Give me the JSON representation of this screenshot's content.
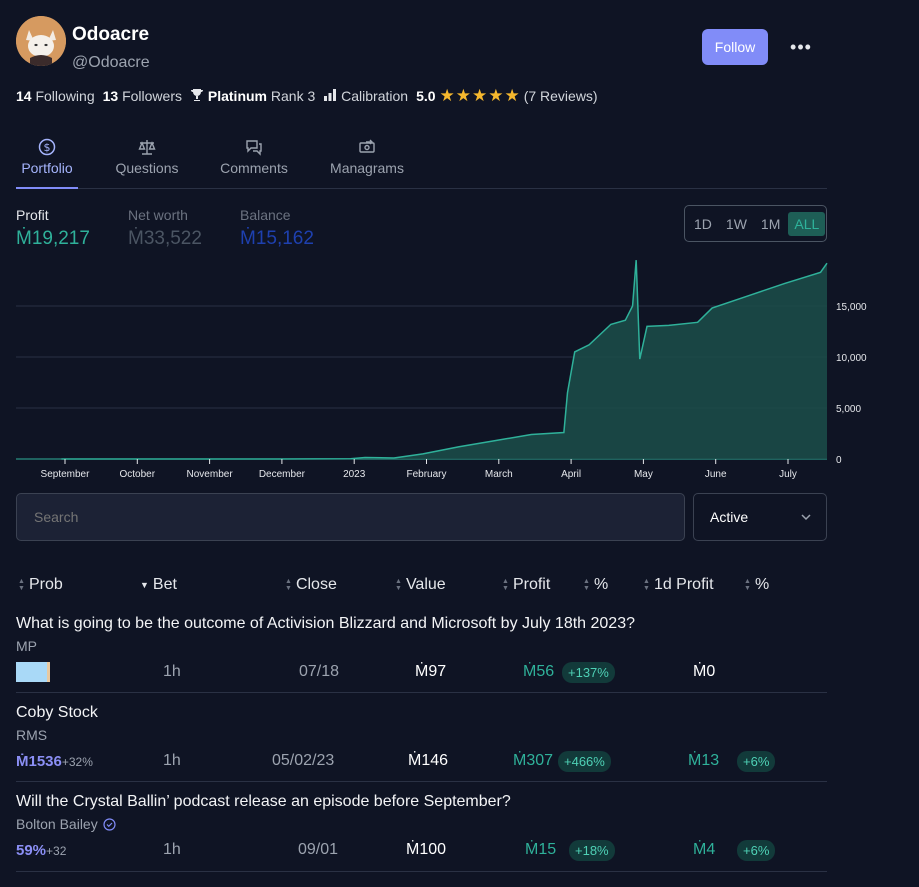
{
  "profile": {
    "name": "Odoacre",
    "handle": "@Odoacre",
    "follow_label": "Follow",
    "more_label": "•••",
    "following_count": "14",
    "following_label": "Following",
    "followers_count": "13",
    "followers_label": "Followers",
    "league": "Platinum",
    "rank": "Rank 3",
    "calibration_label": "Calibration",
    "rating": "5.0",
    "reviews": "(7 Reviews)"
  },
  "tabs": [
    {
      "label": "Portfolio",
      "icon": "dollar-circle-icon"
    },
    {
      "label": "Questions",
      "icon": "scale-icon"
    },
    {
      "label": "Comments",
      "icon": "chat-bubbles-icon"
    },
    {
      "label": "Managrams",
      "icon": "money-transfer-icon"
    }
  ],
  "metrics": {
    "profit": {
      "label": "Profit",
      "value": "Ṁ19,217",
      "color": "#2fb19a"
    },
    "net_worth": {
      "label": "Net worth",
      "value": "Ṁ33,522",
      "color": "#4b5563"
    },
    "balance": {
      "label": "Balance",
      "value": "Ṁ15,162",
      "color": "#1e40af"
    }
  },
  "range": {
    "options": [
      "1D",
      "1W",
      "1M",
      "ALL"
    ],
    "selected": "ALL"
  },
  "chart_data": {
    "type": "area",
    "x_ticks": [
      "September",
      "October",
      "November",
      "December",
      "2023",
      "February",
      "March",
      "April",
      "May",
      "June",
      "July"
    ],
    "y_ticks": [
      "0",
      "5,000",
      "10,000",
      "15,000"
    ],
    "ylim": [
      0,
      20000
    ],
    "x_months": [
      0,
      1,
      2,
      3,
      4,
      4.2,
      4.6,
      5,
      5.5,
      6,
      6.5,
      6.95,
      7.0,
      7.1,
      7.3,
      7.6,
      7.8,
      7.9,
      7.95,
      8.0,
      8.1,
      8.4,
      8.8,
      9.0,
      9.5,
      10.0,
      10.5,
      10.9
    ],
    "y_values": [
      0,
      0,
      0,
      0,
      20,
      150,
      100,
      500,
      1200,
      1800,
      2400,
      2600,
      6500,
      10500,
      11200,
      13200,
      13600,
      15000,
      19500,
      9800,
      13000,
      13100,
      13400,
      14800,
      16000,
      17200,
      18300,
      19200
    ],
    "color": "#1f8a7a",
    "grid": true
  },
  "search": {
    "placeholder": "Search"
  },
  "filter": {
    "value": "Active"
  },
  "columns": [
    {
      "label": "Prob",
      "sort": "both"
    },
    {
      "label": "Bet",
      "sort": "desc"
    },
    {
      "label": "Close",
      "sort": "both"
    },
    {
      "label": "Value",
      "sort": "both"
    },
    {
      "label": "Profit",
      "sort": "both"
    },
    {
      "label": "%",
      "sort": "none"
    },
    {
      "label": "1d Profit",
      "sort": "both"
    },
    {
      "label": "%",
      "sort": "both"
    }
  ],
  "rows": [
    {
      "title": "What is going to be the outcome of Activision Blizzard and Microsoft by July 18th 2023?",
      "creator": "MP",
      "prob": "",
      "prob_delta": "",
      "bet": "1h",
      "close": "07/18",
      "value": "Ṁ97",
      "profit": "Ṁ56",
      "profit_pct": "+137%",
      "day_profit": "Ṁ0",
      "day_pct": ""
    },
    {
      "title": "Coby Stock",
      "creator": "RMS",
      "prob": "Ṁ1536",
      "prob_delta": "+32%",
      "bet": "1h",
      "close": "05/02/23",
      "value": "Ṁ146",
      "profit": "Ṁ307",
      "profit_pct": "+466%",
      "day_profit": "Ṁ13",
      "day_pct": "+6%"
    },
    {
      "title": "Will the Crystal Ballin’ podcast release an episode before September?",
      "creator": "Bolton Bailey",
      "prob": "59%",
      "prob_delta": "+32",
      "bet": "1h",
      "close": "09/01",
      "value": "Ṁ100",
      "profit": "Ṁ15",
      "profit_pct": "+18%",
      "day_profit": "Ṁ4",
      "day_pct": "+6%"
    }
  ]
}
